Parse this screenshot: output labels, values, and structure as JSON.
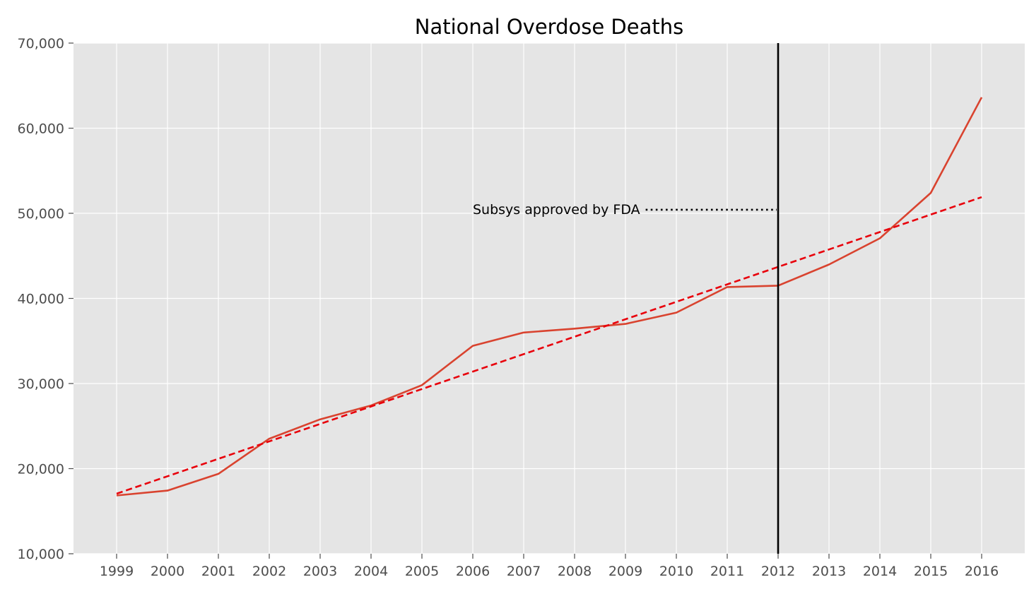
{
  "chart_data": {
    "type": "line",
    "title": "National Overdose Deaths",
    "xlabel": "",
    "ylabel": "",
    "categories": [
      "1999",
      "2000",
      "2001",
      "2002",
      "2003",
      "2004",
      "2005",
      "2006",
      "2007",
      "2008",
      "2009",
      "2010",
      "2011",
      "2012",
      "2013",
      "2014",
      "2015",
      "2016"
    ],
    "y_tick_labels": [
      "10,000",
      "20,000",
      "30,000",
      "40,000",
      "50,000",
      "60,000",
      "70,000"
    ],
    "y_ticks": [
      10000,
      20000,
      30000,
      40000,
      50000,
      60000,
      70000
    ],
    "ylim": [
      10000,
      70000
    ],
    "grid": true,
    "legend": "none",
    "series": [
      {
        "style": "solid",
        "color": "#d9432f",
        "values": [
          16850,
          17420,
          19390,
          23520,
          25790,
          27420,
          29810,
          34430,
          35990,
          36450,
          37000,
          38330,
          41340,
          41500,
          43980,
          47060,
          52400,
          63630
        ]
      },
      {
        "style": "dashed",
        "color": "#e8000b",
        "values": [
          17050,
          19100,
          21150,
          23200,
          25250,
          27300,
          29350,
          31400,
          33450,
          35500,
          37550,
          39600,
          41650,
          43700,
          45750,
          47800,
          49850,
          51900
        ]
      }
    ],
    "vline": {
      "x": "2012",
      "color": "#000000"
    },
    "annotation": {
      "text": "Subsys approved by FDA",
      "y": 50500,
      "from_x": "2006",
      "to_x": "2012",
      "line_style": "dotted"
    },
    "colors": {
      "axes_bg": "#e5e5e5",
      "grid": "#ffffff",
      "tick_text": "#4d4d4d"
    }
  }
}
